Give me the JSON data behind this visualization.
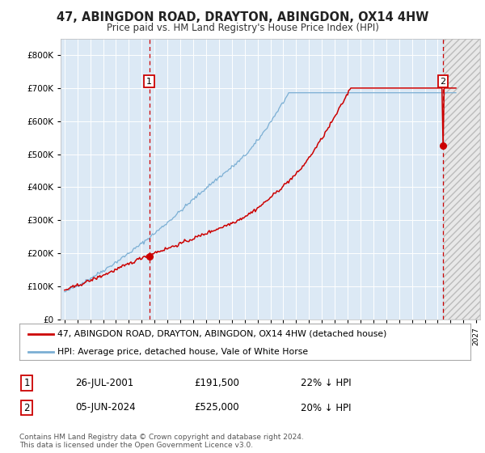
{
  "title": "47, ABINGDON ROAD, DRAYTON, ABINGDON, OX14 4HW",
  "subtitle": "Price paid vs. HM Land Registry's House Price Index (HPI)",
  "background_color": "#ffffff",
  "plot_bg_color": "#dce9f5",
  "sale1_date": "2001-07-26",
  "sale1_price": 191500,
  "sale2_date": "2024-06-05",
  "sale2_price": 525000,
  "legend_label1": "47, ABINGDON ROAD, DRAYTON, ABINGDON, OX14 4HW (detached house)",
  "legend_label2": "HPI: Average price, detached house, Vale of White Horse",
  "footer": "Contains HM Land Registry data © Crown copyright and database right 2024.\nThis data is licensed under the Open Government Licence v3.0.",
  "note1_date": "26-JUL-2001",
  "note1_price": "£191,500",
  "note1_hpi": "22% ↓ HPI",
  "note2_date": "05-JUN-2024",
  "note2_price": "£525,000",
  "note2_hpi": "20% ↓ HPI",
  "hpi_line_color": "#7bafd4",
  "sale_line_color": "#cc0000",
  "marker_color": "#cc0000",
  "vline_color": "#cc0000",
  "box_edge_color": "#cc0000",
  "ylim": [
    0,
    850000
  ],
  "xlim_start": 1994.7,
  "xlim_end": 2027.3,
  "hatch_start": 2024.5,
  "hatch_end": 2027.3
}
